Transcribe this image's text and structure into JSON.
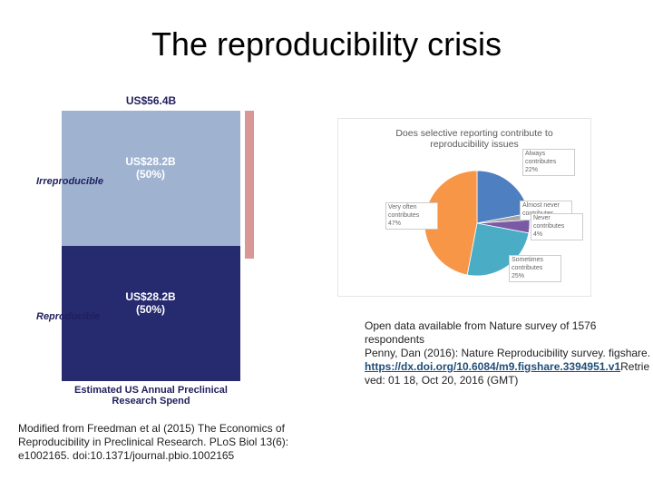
{
  "title": "The reproducibility crisis",
  "chart_data": [
    {
      "type": "stacked-bar",
      "title": "Estimated US Annual Preclinical Research Spend",
      "categories": [
        null
      ],
      "total_label": "US$56.4B",
      "series": [
        {
          "name": "Reproducible",
          "color": "#262a6e",
          "values": [
            28.2
          ],
          "value_labels": [
            "US$28.2B (50%)"
          ]
        },
        {
          "name": "Irreproducible",
          "color": "#9fb3d1",
          "values": [
            28.2
          ],
          "value_labels": [
            "US$28.2B (50%)"
          ]
        }
      ]
    },
    {
      "type": "pie",
      "title": "Does selective reporting contribute to reproducibility issues",
      "categories": [
        "Always contributes",
        "Almost never contributes",
        "Never contributes",
        "Sometimes contributes",
        "Very often contributes"
      ],
      "values": [
        22,
        2,
        4,
        25,
        47
      ],
      "value_labels": [
        "22%",
        null,
        "4%",
        "25%",
        "47%"
      ],
      "colors": [
        "#4e7fc0",
        "#a5a5a5",
        "#7a5aa6",
        "#4bacc6",
        "#f79646"
      ]
    }
  ],
  "left_caption": "Modified from Freedman et al (2015) The Economics of Reproducibility in Preclinical Research. PLoS Biol 13(6): e1002165. doi:10.1371/journal.pbio.1002165",
  "right_caption": {
    "line1": "Open data available from Nature survey of 1576 respondents",
    "line2": "Penny, Dan (2016): Nature Reproducibility survey. figshare.",
    "link": "https://dx.doi.org/10.6084/m9.figshare.3394951.v1",
    "line3": "Retrieved: 01 18, Oct 20, 2016 (GMT)"
  }
}
